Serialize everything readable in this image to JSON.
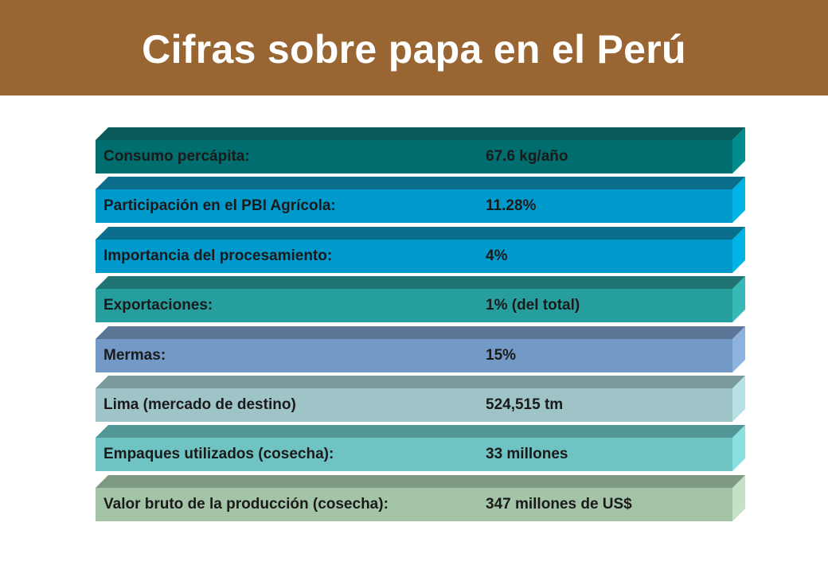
{
  "title": "Cifras sobre papa en el Perú",
  "colors": {
    "title_band": "#996633",
    "title_text": "#ffffff",
    "text": "#1a1a1a"
  },
  "rows": [
    {
      "label": "Consumo percápita:",
      "value": "67.6 kg/año",
      "colors": {
        "front": "#006E6E",
        "top": "#0A5A5A",
        "side": "#008C8C"
      }
    },
    {
      "label": "Participación en el PBI Agrícola:",
      "value": "11.28%",
      "colors": {
        "front": "#0099CC",
        "top": "#0A6E8C",
        "side": "#00B4E6"
      }
    },
    {
      "label": "Importancia del procesamiento:",
      "value": "4%",
      "colors": {
        "front": "#0099CC",
        "top": "#0A6E8C",
        "side": "#00B4E6"
      }
    },
    {
      "label": "Exportaciones:",
      "value": "1% (del total)",
      "colors": {
        "front": "#269E9E",
        "top": "#1F7373",
        "side": "#39B8B8"
      }
    },
    {
      "label": "Mermas:",
      "value": "15%",
      "colors": {
        "front": "#7399C6",
        "top": "#5A7596",
        "side": "#8CB2E0"
      }
    },
    {
      "label": "Lima (mercado de destino)",
      "value": "524,515 tm",
      "colors": {
        "front": "#9EC4C8",
        "top": "#7A9A9D",
        "side": "#B6E0E3"
      }
    },
    {
      "label": "Empaques utilizados (cosecha):",
      "value": "33 millones",
      "colors": {
        "front": "#6FC3C3",
        "top": "#539696",
        "side": "#8AE0E0"
      }
    },
    {
      "label": "Valor bruto de la producción (cosecha):",
      "value": "347 millones de US$",
      "colors": {
        "front": "#A4C4A8",
        "top": "#7F9A83",
        "side": "#C4E2C7"
      }
    }
  ]
}
